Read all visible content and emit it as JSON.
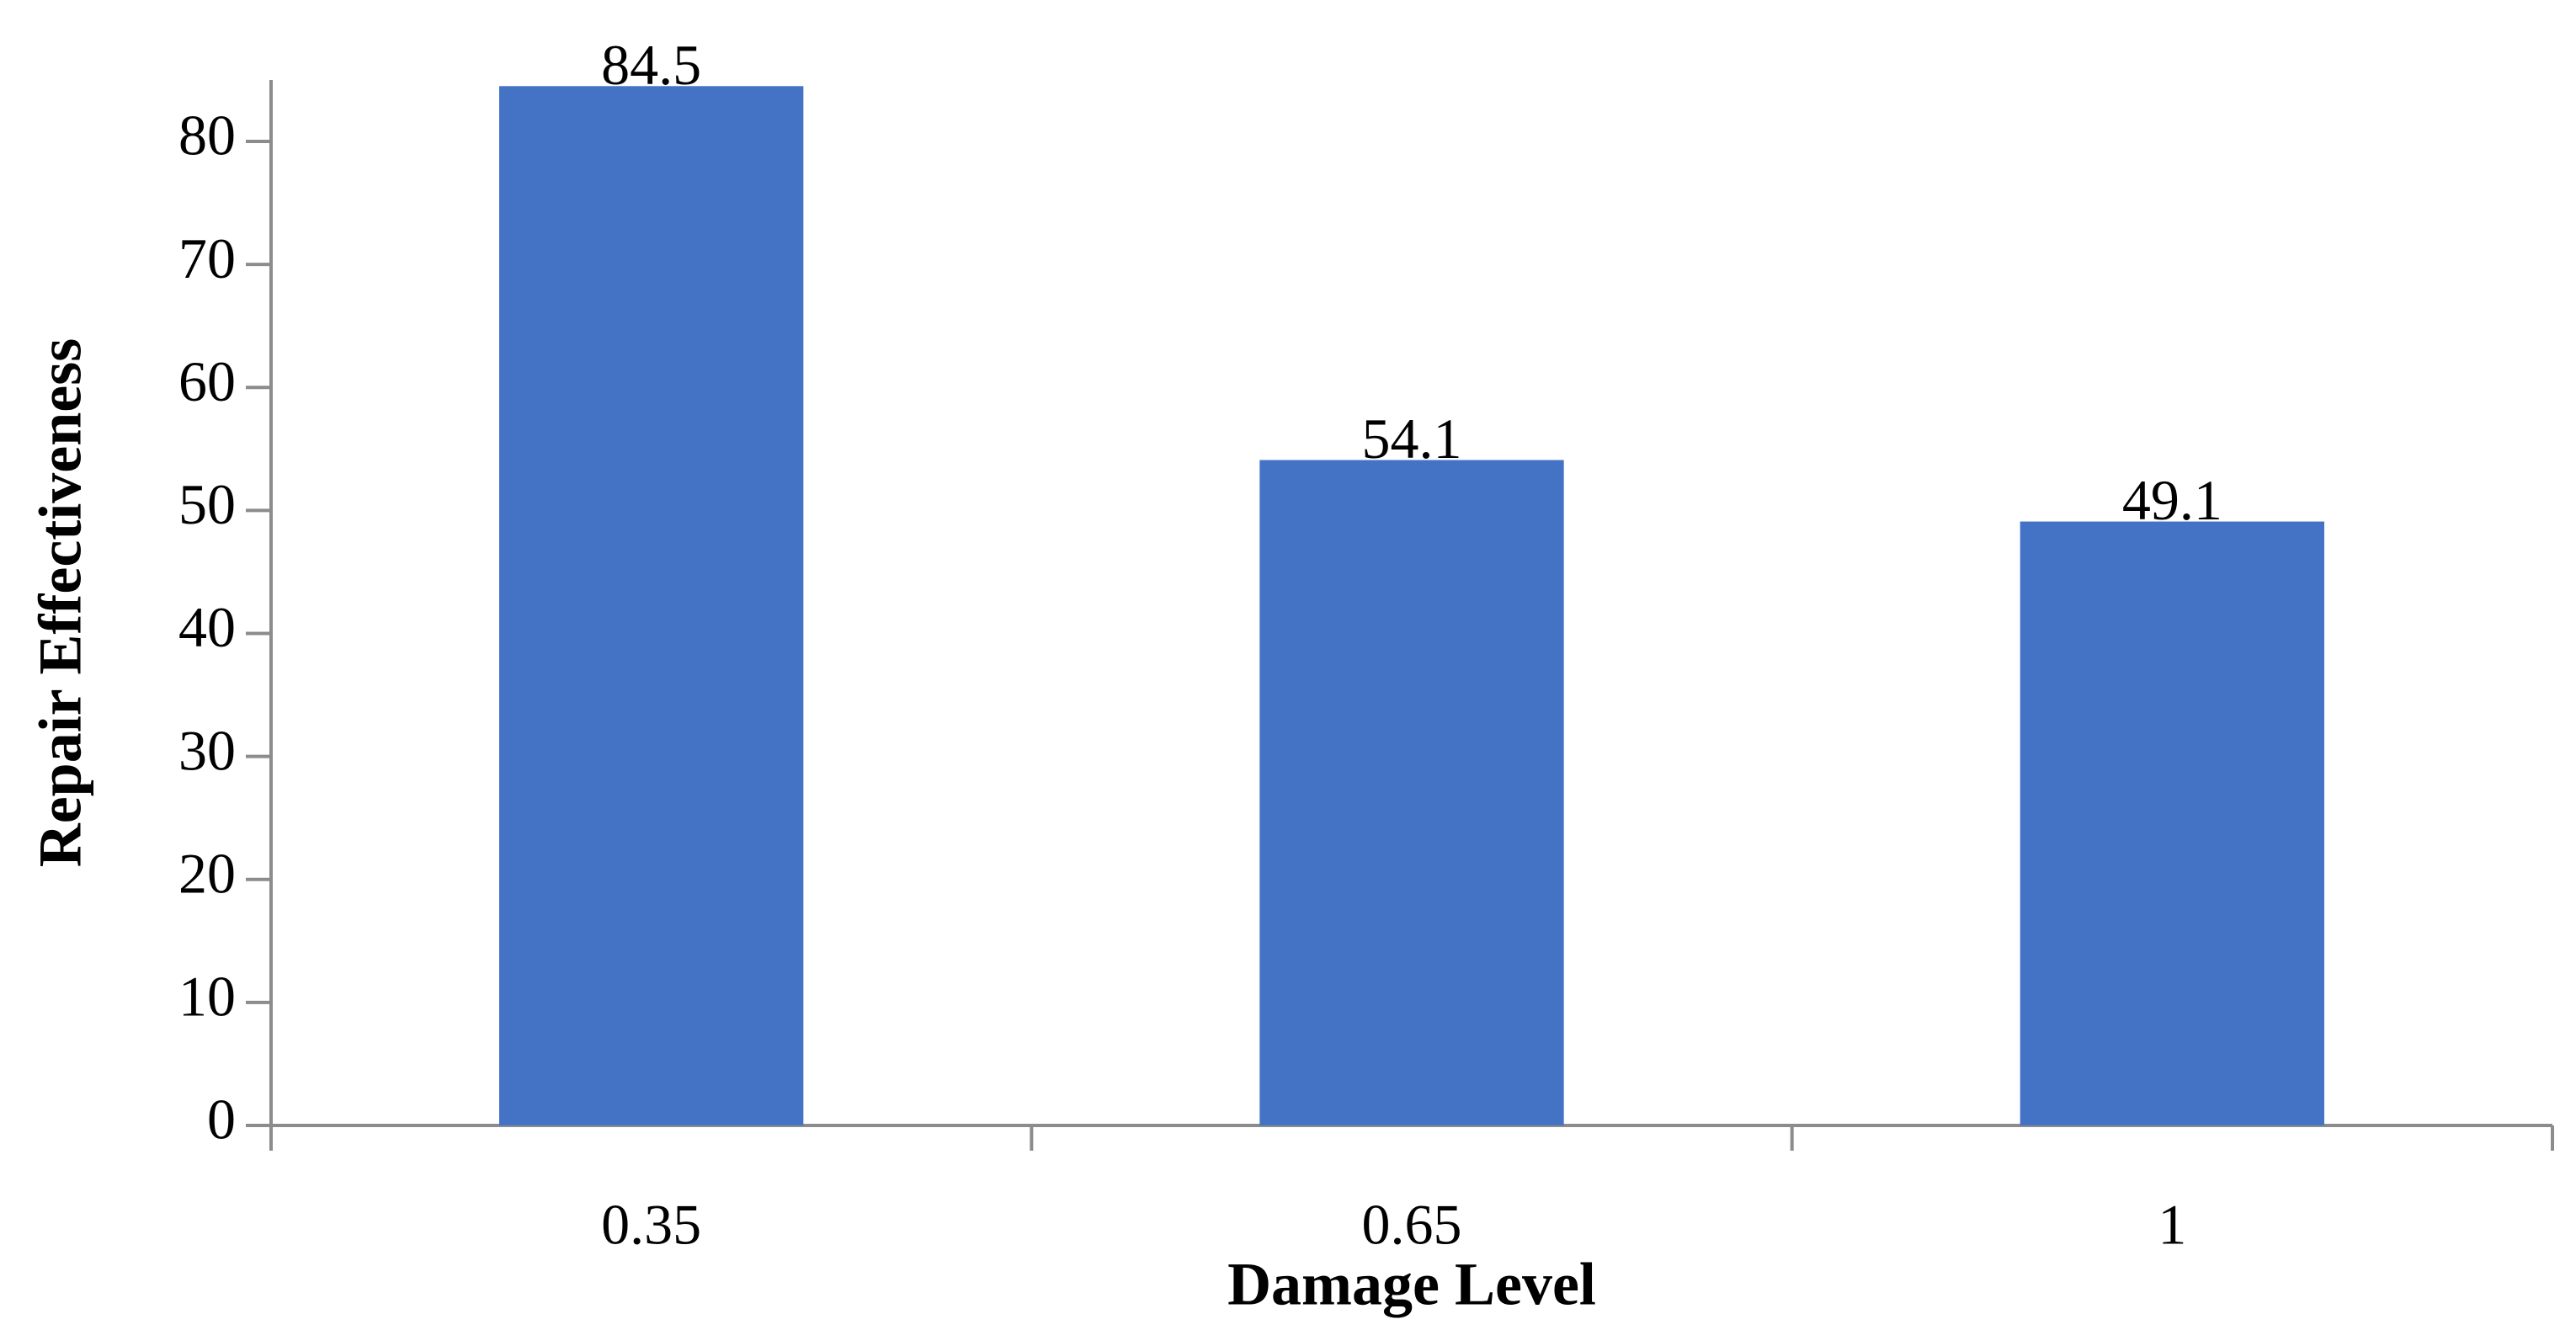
{
  "chart_data": {
    "type": "bar",
    "x_label": "Damage Level",
    "y_label": "Repair Effectiveness",
    "categories": [
      "0.35",
      "0.65",
      "1"
    ],
    "values": [
      84.5,
      54.1,
      49.1
    ],
    "color": "#4472c4",
    "ylim": [
      0,
      85
    ],
    "yticks": [
      0,
      10,
      20,
      30,
      40,
      50,
      60,
      70,
      80
    ],
    "grid": false
  }
}
